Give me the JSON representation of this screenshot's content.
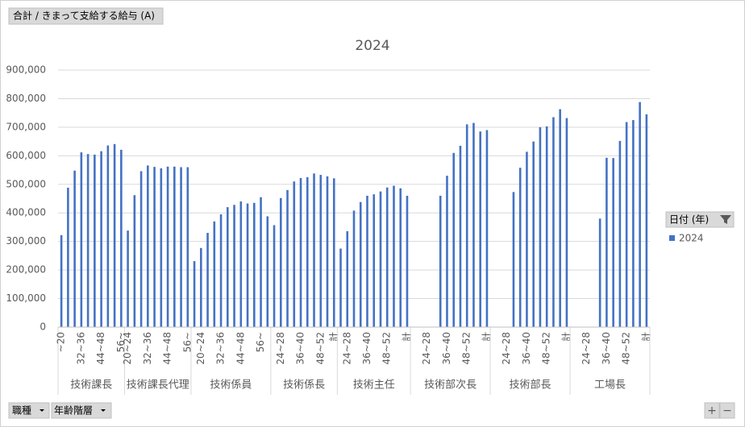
{
  "ui": {
    "field_button": "合計 / きまって支給する給与 (A)",
    "axis_buttons": [
      "職種",
      "年齢階層"
    ],
    "zoom": [
      "+",
      "−"
    ]
  },
  "chart_data": {
    "type": "bar",
    "title": "2024",
    "legend_title": "日付 (年)",
    "series": [
      {
        "name": "2024",
        "color": "#4472c4"
      }
    ],
    "groups": [
      {
        "name": "技術課長",
        "categories": [
          "~20",
          null,
          null,
          "32~36",
          null,
          null,
          "44~48",
          null,
          null,
          "56~"
        ],
        "values": [
          322000,
          488000,
          548000,
          612000,
          606000,
          604000,
          616000,
          636000,
          641000,
          621000
        ]
      },
      {
        "name": "技術課長代理",
        "categories": [
          "20~24",
          null,
          null,
          "32~36",
          null,
          null,
          "44~48",
          null,
          null,
          "56~"
        ],
        "values": [
          338000,
          462000,
          546000,
          566000,
          561000,
          556000,
          562000,
          562000,
          560000,
          560000
        ]
      },
      {
        "name": "技術係員",
        "categories": [
          null,
          "20~24",
          null,
          null,
          "32~36",
          null,
          null,
          "44~48",
          null,
          null,
          "56~",
          null
        ],
        "values": [
          231000,
          277000,
          330000,
          370000,
          395000,
          420000,
          428000,
          440000,
          433000,
          435000,
          455000,
          388000
        ]
      },
      {
        "name": "技術係長",
        "categories": [
          null,
          "24~28",
          null,
          null,
          "36~40",
          null,
          null,
          "48~52",
          null,
          "計"
        ],
        "values": [
          357000,
          452000,
          480000,
          510000,
          522000,
          525000,
          538000,
          533000,
          528000,
          521000
        ]
      },
      {
        "name": "技術主任",
        "categories": [
          null,
          "24~28",
          null,
          null,
          "36~40",
          null,
          null,
          "48~52",
          null,
          null,
          "計"
        ],
        "values": [
          275000,
          336000,
          408000,
          438000,
          460000,
          465000,
          475000,
          489000,
          495000,
          486000,
          460000
        ]
      },
      {
        "name": "技術部次長",
        "categories": [
          null,
          null,
          "24~28",
          null,
          null,
          "36~40",
          null,
          null,
          "48~52",
          null,
          null,
          "計"
        ],
        "values": [
          null,
          null,
          null,
          null,
          460000,
          530000,
          610000,
          635000,
          710000,
          715000,
          685000,
          690000
        ]
      },
      {
        "name": "技術部長",
        "categories": [
          null,
          null,
          "24~28",
          null,
          null,
          "36~40",
          null,
          null,
          "48~52",
          null,
          null,
          "計"
        ],
        "values": [
          null,
          null,
          null,
          473000,
          558000,
          614000,
          650000,
          700000,
          703000,
          735000,
          763000,
          732000
        ]
      },
      {
        "name": "工場長",
        "categories": [
          null,
          null,
          "24~28",
          null,
          null,
          "36~40",
          null,
          null,
          "48~52",
          null,
          null,
          "計"
        ],
        "values": [
          null,
          null,
          null,
          null,
          380000,
          593000,
          592000,
          652000,
          718000,
          725000,
          788000,
          745000
        ]
      }
    ],
    "ylim": [
      0,
      900000
    ],
    "yticks": [
      0,
      {
        "value": 100000,
        "label": "100,000"
      },
      {
        "value": 200000,
        "label": "200,000"
      },
      {
        "value": 300000,
        "label": "300,000"
      },
      {
        "value": 400000,
        "label": "400,000"
      },
      {
        "value": 500000,
        "label": "500,000"
      },
      {
        "value": 600000,
        "label": "600,000"
      },
      {
        "value": 700000,
        "label": "700,000"
      },
      {
        "value": 800000,
        "label": "800,000"
      },
      {
        "value": 900000,
        "label": "900,000"
      }
    ],
    "grid": true
  }
}
